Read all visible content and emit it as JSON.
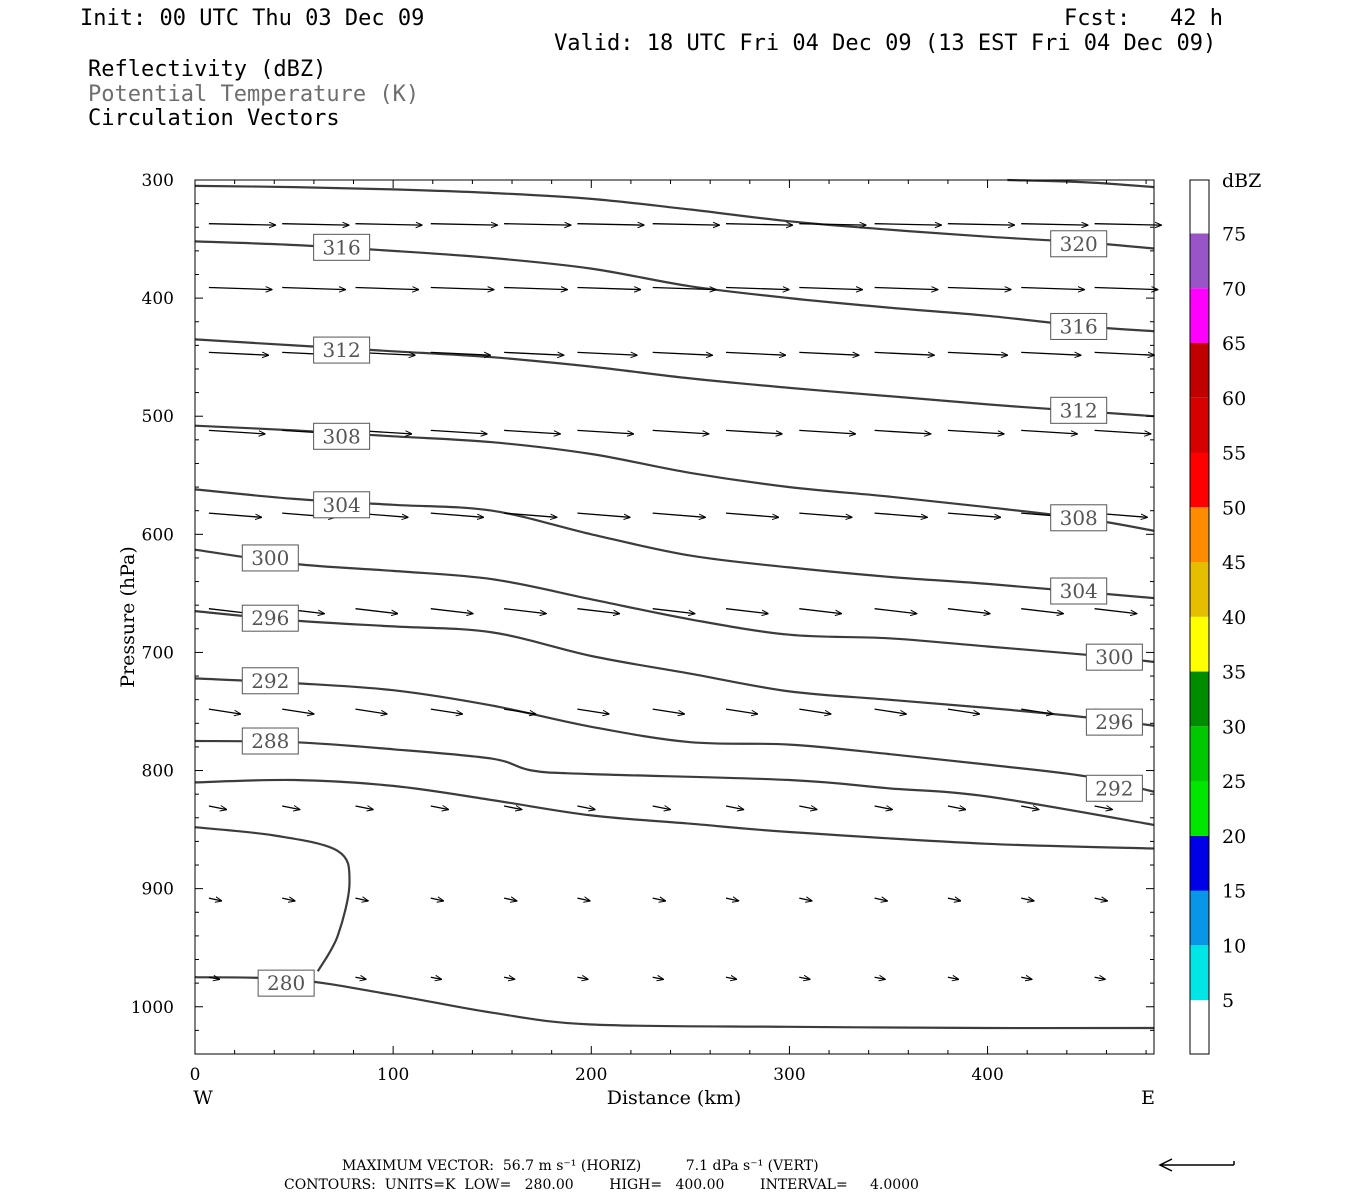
{
  "header": {
    "init": "Init: 00 UTC Thu 03 Dec 09",
    "fcst": "Fcst:   42 h",
    "valid": "Valid: 18 UTC Fri 04 Dec 09 (13 EST Fri 04 Dec 09)",
    "field1": "Reflectivity (dBZ)",
    "field2": "Potential Temperature (K)",
    "field3": "Circulation Vectors"
  },
  "colorbar": {
    "unit": "dBZ",
    "levels": [
      "5",
      "10",
      "15",
      "20",
      "25",
      "30",
      "35",
      "40",
      "45",
      "50",
      "55",
      "60",
      "65",
      "70",
      "75"
    ],
    "colors": [
      "#ffffff",
      "#00e6e6",
      "#0a96e6",
      "#0000e6",
      "#00e600",
      "#00c800",
      "#008c00",
      "#ffff00",
      "#e6be00",
      "#ff8c00",
      "#ff0000",
      "#d70000",
      "#c00000",
      "#ff00ff",
      "#9955c8",
      "#ffffff"
    ]
  },
  "footer": {
    "max_vector": "MAXIMUM VECTOR:  56.7 m s⁻¹ (HORIZ)          7.1 dPa s⁻¹ (VERT)",
    "contours": "CONTOURS:  UNITS=K  LOW=   280.00        HIGH=   400.00        INTERVAL=     4.0000"
  },
  "chart_data": {
    "type": "line",
    "title": "",
    "xlabel": "Distance (km)",
    "ylabel": "Pressure (hPa)",
    "xlim": [
      0,
      484
    ],
    "ylim": [
      1040,
      300
    ],
    "x_ticks": [
      "0",
      "100",
      "200",
      "300",
      "400"
    ],
    "y_ticks": [
      "300",
      "400",
      "500",
      "600",
      "700",
      "800",
      "900",
      "1000"
    ],
    "x_end_labels": {
      "left": "W",
      "right": "E"
    },
    "isentropes": [
      {
        "theta": 280,
        "points": [
          [
            0,
            975
          ],
          [
            50,
            977
          ],
          [
            100,
            990
          ],
          [
            150,
            1005
          ],
          [
            200,
            1015
          ],
          [
            300,
            1017
          ],
          [
            400,
            1018
          ],
          [
            484,
            1018
          ]
        ]
      },
      {
        "theta": 280,
        "points": [
          [
            0,
            848
          ],
          [
            40,
            855
          ],
          [
            72,
            868
          ],
          [
            78,
            895
          ],
          [
            72,
            940
          ],
          [
            62,
            970
          ]
        ]
      },
      {
        "theta": 284,
        "points": [
          [
            0,
            810
          ],
          [
            50,
            808
          ],
          [
            100,
            813
          ],
          [
            150,
            825
          ],
          [
            200,
            838
          ],
          [
            250,
            845
          ],
          [
            300,
            852
          ],
          [
            400,
            862
          ],
          [
            484,
            866
          ]
        ]
      },
      {
        "theta": 288,
        "points": [
          [
            0,
            775
          ],
          [
            50,
            776
          ],
          [
            100,
            782
          ],
          [
            150,
            790
          ],
          [
            170,
            800
          ],
          [
            200,
            803
          ],
          [
            300,
            808
          ],
          [
            350,
            815
          ],
          [
            400,
            822
          ],
          [
            484,
            846
          ]
        ]
      },
      {
        "theta": 292,
        "points": [
          [
            0,
            722
          ],
          [
            50,
            726
          ],
          [
            100,
            732
          ],
          [
            150,
            745
          ],
          [
            200,
            763
          ],
          [
            250,
            776
          ],
          [
            300,
            778
          ],
          [
            350,
            786
          ],
          [
            400,
            795
          ],
          [
            450,
            805
          ],
          [
            484,
            818
          ]
        ]
      },
      {
        "theta": 296,
        "points": [
          [
            0,
            665
          ],
          [
            50,
            673
          ],
          [
            100,
            678
          ],
          [
            150,
            683
          ],
          [
            200,
            703
          ],
          [
            250,
            718
          ],
          [
            300,
            733
          ],
          [
            350,
            740
          ],
          [
            400,
            747
          ],
          [
            450,
            755
          ],
          [
            484,
            762
          ]
        ]
      },
      {
        "theta": 300,
        "points": [
          [
            0,
            613
          ],
          [
            50,
            625
          ],
          [
            100,
            631
          ],
          [
            150,
            638
          ],
          [
            200,
            655
          ],
          [
            250,
            672
          ],
          [
            300,
            685
          ],
          [
            350,
            688
          ],
          [
            400,
            695
          ],
          [
            450,
            702
          ],
          [
            484,
            708
          ]
        ]
      },
      {
        "theta": 304,
        "points": [
          [
            0,
            562
          ],
          [
            50,
            570
          ],
          [
            100,
            575
          ],
          [
            150,
            580
          ],
          [
            200,
            600
          ],
          [
            250,
            618
          ],
          [
            300,
            628
          ],
          [
            350,
            636
          ],
          [
            400,
            642
          ],
          [
            484,
            654
          ]
        ]
      },
      {
        "theta": 308,
        "points": [
          [
            0,
            508
          ],
          [
            50,
            512
          ],
          [
            100,
            517
          ],
          [
            150,
            522
          ],
          [
            200,
            532
          ],
          [
            250,
            548
          ],
          [
            300,
            560
          ],
          [
            350,
            568
          ],
          [
            400,
            577
          ],
          [
            450,
            587
          ],
          [
            484,
            597
          ]
        ]
      },
      {
        "theta": 312,
        "points": [
          [
            0,
            435
          ],
          [
            50,
            440
          ],
          [
            100,
            445
          ],
          [
            150,
            450
          ],
          [
            200,
            458
          ],
          [
            250,
            468
          ],
          [
            300,
            476
          ],
          [
            350,
            483
          ],
          [
            400,
            490
          ],
          [
            450,
            496
          ],
          [
            484,
            500
          ]
        ]
      },
      {
        "theta": 316,
        "points": [
          [
            0,
            352
          ],
          [
            50,
            355
          ],
          [
            100,
            360
          ],
          [
            150,
            366
          ],
          [
            200,
            375
          ],
          [
            250,
            390
          ],
          [
            300,
            400
          ],
          [
            350,
            408
          ],
          [
            400,
            415
          ],
          [
            450,
            424
          ],
          [
            484,
            428
          ]
        ]
      },
      {
        "theta": 320,
        "points": [
          [
            0,
            305
          ],
          [
            50,
            306
          ],
          [
            100,
            308
          ],
          [
            150,
            311
          ],
          [
            200,
            316
          ],
          [
            250,
            325
          ],
          [
            300,
            335
          ],
          [
            350,
            342
          ],
          [
            400,
            348
          ],
          [
            450,
            353
          ],
          [
            484,
            358
          ]
        ]
      },
      {
        "theta": 324,
        "points": [
          [
            410,
            300
          ],
          [
            450,
            302
          ],
          [
            484,
            306
          ]
        ]
      }
    ],
    "contour_labels": [
      {
        "theta": "316",
        "x": 74,
        "p": 357
      },
      {
        "theta": "320",
        "x": 446,
        "p": 354
      },
      {
        "theta": "316",
        "x": 446,
        "p": 424
      },
      {
        "theta": "312",
        "x": 74,
        "p": 444
      },
      {
        "theta": "312",
        "x": 446,
        "p": 495
      },
      {
        "theta": "308",
        "x": 74,
        "p": 517
      },
      {
        "theta": "304",
        "x": 74,
        "p": 575
      },
      {
        "theta": "308",
        "x": 446,
        "p": 586
      },
      {
        "theta": "300",
        "x": 38,
        "p": 620
      },
      {
        "theta": "304",
        "x": 446,
        "p": 648
      },
      {
        "theta": "296",
        "x": 38,
        "p": 671
      },
      {
        "theta": "300",
        "x": 464,
        "p": 704
      },
      {
        "theta": "292",
        "x": 38,
        "p": 724
      },
      {
        "theta": "296",
        "x": 464,
        "p": 759
      },
      {
        "theta": "288",
        "x": 38,
        "p": 775
      },
      {
        "theta": "292",
        "x": 464,
        "p": 815
      },
      {
        "theta": "280",
        "x": 46,
        "p": 980
      }
    ],
    "vectors": [
      {
        "p": 337,
        "u": 0.95,
        "w": -0.02,
        "xs": [
          7,
          44,
          81,
          119,
          156,
          193,
          231,
          268,
          305,
          343,
          380,
          417,
          454
        ]
      },
      {
        "p": 391,
        "u": 0.9,
        "w": -0.03,
        "xs": [
          7,
          44,
          81,
          119,
          156,
          193,
          231,
          268,
          305,
          343,
          380,
          417,
          454
        ]
      },
      {
        "p": 446,
        "u": 0.85,
        "w": -0.04,
        "xs": [
          7,
          44,
          81,
          119,
          156,
          193,
          231,
          268,
          305,
          343,
          380,
          417,
          454
        ]
      },
      {
        "p": 512,
        "u": 0.8,
        "w": -0.05,
        "xs": [
          7,
          44,
          81,
          119,
          156,
          193,
          231,
          268,
          305,
          343,
          380,
          417,
          454
        ]
      },
      {
        "p": 582,
        "u": 0.75,
        "w": -0.06,
        "xs": [
          7,
          44,
          81,
          119,
          156,
          193,
          231,
          268,
          305,
          343,
          380,
          417,
          454
        ]
      },
      {
        "p": 663,
        "u": 0.6,
        "w": -0.07,
        "xs": [
          7,
          44,
          81,
          119,
          156,
          193,
          231,
          268,
          305,
          343,
          380,
          417,
          454
        ]
      },
      {
        "p": 748,
        "u": 0.45,
        "w": -0.07,
        "xs": [
          7,
          44,
          81,
          119,
          156,
          193,
          231,
          268,
          305,
          343,
          380,
          417,
          454
        ]
      },
      {
        "p": 830,
        "u": 0.25,
        "w": -0.05,
        "xs": [
          7,
          44,
          81,
          119,
          156,
          193,
          231,
          268,
          305,
          343,
          380,
          417,
          454
        ]
      },
      {
        "p": 908,
        "u": 0.18,
        "w": -0.04,
        "xs": [
          7,
          44,
          81,
          119,
          156,
          193,
          231,
          268,
          305,
          343,
          380,
          417,
          454
        ]
      },
      {
        "p": 975,
        "u": 0.15,
        "w": -0.03,
        "xs": [
          7,
          44,
          81,
          119,
          156,
          193,
          231,
          268,
          305,
          343,
          380,
          417,
          454
        ]
      }
    ]
  }
}
